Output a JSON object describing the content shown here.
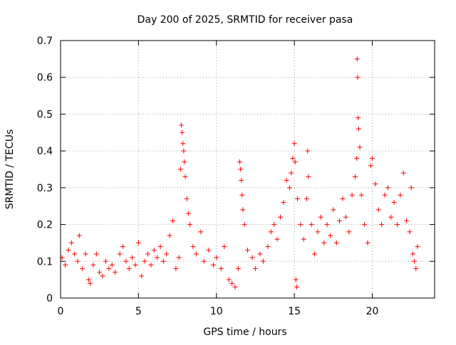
{
  "chart_data": {
    "type": "scatter",
    "title": "Day 200 of 2025, SRMTID for receiver pasa",
    "xlabel": "GPS time / hours",
    "ylabel": "SRMTID / TECUs",
    "xlim": [
      0,
      24
    ],
    "ylim": [
      0,
      0.7
    ],
    "x_ticks": [
      0,
      5,
      10,
      15,
      20
    ],
    "x_tick_labels": [
      "0",
      "5",
      "10",
      "15",
      "20"
    ],
    "y_ticks": [
      0,
      0.1,
      0.2,
      0.3,
      0.4,
      0.5,
      0.6,
      0.7
    ],
    "y_tick_labels": [
      "0",
      "0.1",
      "0.2",
      "0.3",
      "0.4",
      "0.5",
      "0.6",
      "0.7"
    ],
    "grid": true,
    "marker": "+",
    "series": [
      {
        "name": "SRMTID",
        "color": "#ff0000",
        "x_range": [
          0,
          22.9
        ],
        "points": [
          [
            0.1,
            0.11
          ],
          [
            0.3,
            0.09
          ],
          [
            0.5,
            0.13
          ],
          [
            0.7,
            0.15
          ],
          [
            0.9,
            0.12
          ],
          [
            1.1,
            0.1
          ],
          [
            1.2,
            0.17
          ],
          [
            1.4,
            0.08
          ],
          [
            1.6,
            0.12
          ],
          [
            1.8,
            0.05
          ],
          [
            1.9,
            0.04
          ],
          [
            2.1,
            0.09
          ],
          [
            2.3,
            0.12
          ],
          [
            2.5,
            0.07
          ],
          [
            2.7,
            0.06
          ],
          [
            2.9,
            0.1
          ],
          [
            3.1,
            0.08
          ],
          [
            3.3,
            0.09
          ],
          [
            3.5,
            0.07
          ],
          [
            3.8,
            0.12
          ],
          [
            4.0,
            0.14
          ],
          [
            4.2,
            0.1
          ],
          [
            4.4,
            0.08
          ],
          [
            4.6,
            0.11
          ],
          [
            4.8,
            0.09
          ],
          [
            5.0,
            0.15
          ],
          [
            5.2,
            0.06
          ],
          [
            5.4,
            0.1
          ],
          [
            5.6,
            0.12
          ],
          [
            5.8,
            0.09
          ],
          [
            6.0,
            0.13
          ],
          [
            6.2,
            0.11
          ],
          [
            6.4,
            0.14
          ],
          [
            6.6,
            0.1
          ],
          [
            6.8,
            0.12
          ],
          [
            7.0,
            0.17
          ],
          [
            7.2,
            0.21
          ],
          [
            7.4,
            0.08
          ],
          [
            7.6,
            0.11
          ],
          [
            7.7,
            0.35
          ],
          [
            7.75,
            0.47
          ],
          [
            7.8,
            0.45
          ],
          [
            7.85,
            0.42
          ],
          [
            7.9,
            0.4
          ],
          [
            7.95,
            0.37
          ],
          [
            8.0,
            0.33
          ],
          [
            8.1,
            0.27
          ],
          [
            8.2,
            0.23
          ],
          [
            8.3,
            0.2
          ],
          [
            8.5,
            0.14
          ],
          [
            8.7,
            0.12
          ],
          [
            9.0,
            0.18
          ],
          [
            9.2,
            0.1
          ],
          [
            9.5,
            0.13
          ],
          [
            9.8,
            0.09
          ],
          [
            10.0,
            0.11
          ],
          [
            10.3,
            0.08
          ],
          [
            10.5,
            0.14
          ],
          [
            10.8,
            0.05
          ],
          [
            11.0,
            0.04
          ],
          [
            11.2,
            0.03
          ],
          [
            11.4,
            0.08
          ],
          [
            11.5,
            0.37
          ],
          [
            11.55,
            0.35
          ],
          [
            11.6,
            0.32
          ],
          [
            11.65,
            0.28
          ],
          [
            11.7,
            0.24
          ],
          [
            11.8,
            0.2
          ],
          [
            12.0,
            0.13
          ],
          [
            12.3,
            0.11
          ],
          [
            12.5,
            0.08
          ],
          [
            12.8,
            0.12
          ],
          [
            13.0,
            0.1
          ],
          [
            13.3,
            0.14
          ],
          [
            13.5,
            0.18
          ],
          [
            13.7,
            0.2
          ],
          [
            13.9,
            0.16
          ],
          [
            14.1,
            0.22
          ],
          [
            14.3,
            0.26
          ],
          [
            14.5,
            0.32
          ],
          [
            14.7,
            0.3
          ],
          [
            14.8,
            0.34
          ],
          [
            14.9,
            0.38
          ],
          [
            15.0,
            0.42
          ],
          [
            15.05,
            0.37
          ],
          [
            15.1,
            0.05
          ],
          [
            15.15,
            0.03
          ],
          [
            15.2,
            0.27
          ],
          [
            15.4,
            0.2
          ],
          [
            15.6,
            0.16
          ],
          [
            15.8,
            0.27
          ],
          [
            15.85,
            0.4
          ],
          [
            15.9,
            0.33
          ],
          [
            16.1,
            0.2
          ],
          [
            16.3,
            0.12
          ],
          [
            16.5,
            0.18
          ],
          [
            16.7,
            0.22
          ],
          [
            16.9,
            0.15
          ],
          [
            17.1,
            0.2
          ],
          [
            17.3,
            0.17
          ],
          [
            17.5,
            0.24
          ],
          [
            17.7,
            0.15
          ],
          [
            17.9,
            0.21
          ],
          [
            18.1,
            0.27
          ],
          [
            18.3,
            0.22
          ],
          [
            18.5,
            0.18
          ],
          [
            18.7,
            0.28
          ],
          [
            18.9,
            0.33
          ],
          [
            19.0,
            0.38
          ],
          [
            19.03,
            0.65
          ],
          [
            19.06,
            0.6
          ],
          [
            19.1,
            0.49
          ],
          [
            19.13,
            0.46
          ],
          [
            19.2,
            0.41
          ],
          [
            19.3,
            0.28
          ],
          [
            19.5,
            0.2
          ],
          [
            19.7,
            0.15
          ],
          [
            19.9,
            0.36
          ],
          [
            20.0,
            0.38
          ],
          [
            20.2,
            0.31
          ],
          [
            20.4,
            0.24
          ],
          [
            20.6,
            0.2
          ],
          [
            20.8,
            0.28
          ],
          [
            21.0,
            0.3
          ],
          [
            21.2,
            0.22
          ],
          [
            21.4,
            0.26
          ],
          [
            21.6,
            0.2
          ],
          [
            21.8,
            0.28
          ],
          [
            22.0,
            0.34
          ],
          [
            22.2,
            0.21
          ],
          [
            22.4,
            0.18
          ],
          [
            22.5,
            0.3
          ],
          [
            22.6,
            0.12
          ],
          [
            22.7,
            0.1
          ],
          [
            22.8,
            0.08
          ],
          [
            22.9,
            0.14
          ]
        ]
      }
    ]
  }
}
